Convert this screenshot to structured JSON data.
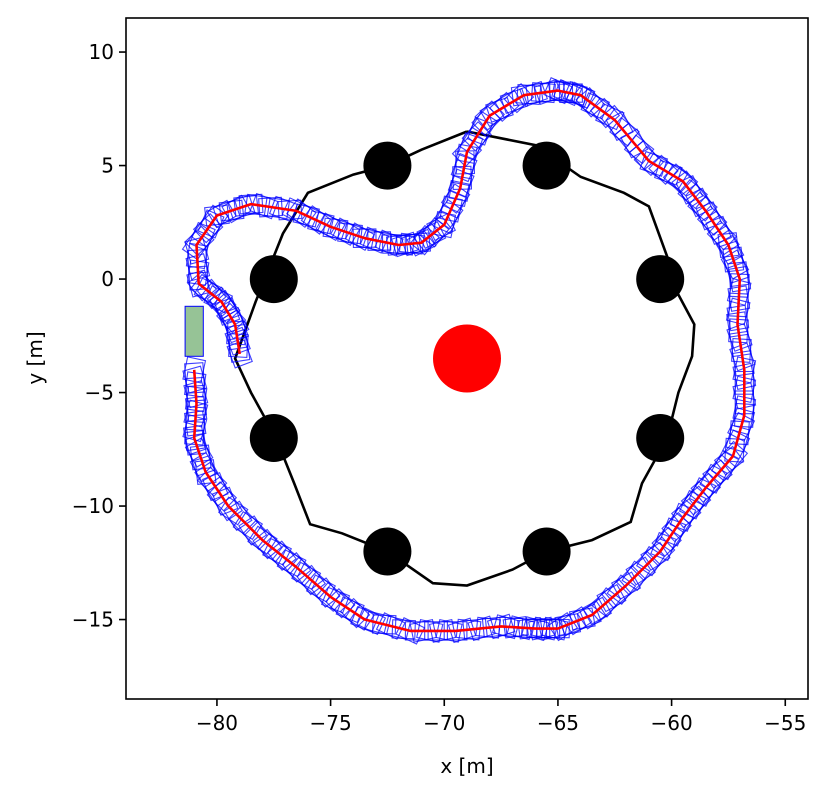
{
  "chart_data": {
    "type": "scatter",
    "xlabel": "x [m]",
    "ylabel": "y [m]",
    "xlim": [
      -84,
      -54
    ],
    "ylim": [
      -18.5,
      11.5
    ],
    "xticks": [
      -80,
      -75,
      -70,
      -65,
      -60,
      -55
    ],
    "yticks": [
      10,
      5,
      0,
      -5,
      -10,
      -15
    ],
    "xtick_labels": [
      "−80",
      "−75",
      "−70",
      "−65",
      "−60",
      "−55"
    ],
    "ytick_labels": [
      "10",
      "5",
      "0",
      "−5",
      "−10",
      "−15"
    ],
    "grid": false,
    "colors": {
      "polygon": "#000000",
      "obstacles": "#000000",
      "center": "#ff0000",
      "path": "#ff0000",
      "footprints": "#0000ff",
      "start": "#6aaa6a"
    },
    "center": {
      "x": -69,
      "y": -3.5
    },
    "obstacles": [
      {
        "x": -72.5,
        "y": 5
      },
      {
        "x": -65.5,
        "y": 5
      },
      {
        "x": -77.5,
        "y": 0
      },
      {
        "x": -60.5,
        "y": 0
      },
      {
        "x": -77.5,
        "y": -7
      },
      {
        "x": -60.5,
        "y": -7
      },
      {
        "x": -72.5,
        "y": -12
      },
      {
        "x": -65.5,
        "y": -12
      }
    ],
    "polygon": [
      [
        -69.0,
        6.5
      ],
      [
        -66.0,
        5.9
      ],
      [
        -64.0,
        4.5
      ],
      [
        -62.1,
        3.8
      ],
      [
        -61.0,
        3.2
      ],
      [
        -60.2,
        1.0
      ],
      [
        -59.8,
        -0.5
      ],
      [
        -59.0,
        -2.0
      ],
      [
        -59.1,
        -3.4
      ],
      [
        -59.7,
        -5.0
      ],
      [
        -60.2,
        -7.0
      ],
      [
        -61.3,
        -9.0
      ],
      [
        -61.8,
        -10.7
      ],
      [
        -63.5,
        -11.5
      ],
      [
        -65.5,
        -12.0
      ],
      [
        -67.0,
        -12.8
      ],
      [
        -69.0,
        -13.5
      ],
      [
        -70.5,
        -13.4
      ],
      [
        -72.5,
        -12.0
      ],
      [
        -74.5,
        -11.2
      ],
      [
        -75.9,
        -10.8
      ],
      [
        -76.6,
        -9.0
      ],
      [
        -77.4,
        -7.0
      ],
      [
        -78.5,
        -5.0
      ],
      [
        -79.2,
        -3.5
      ],
      [
        -78.3,
        -1.0
      ],
      [
        -77.1,
        2.0
      ],
      [
        -76.0,
        3.8
      ],
      [
        -74.0,
        4.6
      ],
      [
        -72.5,
        5.0
      ],
      [
        -71.0,
        5.7
      ],
      [
        -69.0,
        6.5
      ]
    ],
    "path": [
      [
        -79.0,
        -3.3
      ],
      [
        -79.2,
        -2.0
      ],
      [
        -79.8,
        -1.0
      ],
      [
        -80.8,
        -0.2
      ],
      [
        -80.9,
        1.5
      ],
      [
        -80.0,
        2.8
      ],
      [
        -78.5,
        3.3
      ],
      [
        -76.5,
        3.0
      ],
      [
        -75.0,
        2.3
      ],
      [
        -73.5,
        1.8
      ],
      [
        -72.0,
        1.5
      ],
      [
        -71.0,
        1.6
      ],
      [
        -70.0,
        2.4
      ],
      [
        -69.3,
        4.0
      ],
      [
        -69.0,
        5.6
      ],
      [
        -68.0,
        7.2
      ],
      [
        -66.5,
        8.1
      ],
      [
        -65.0,
        8.3
      ],
      [
        -64.0,
        8.1
      ],
      [
        -62.5,
        7.0
      ],
      [
        -61.0,
        5.2
      ],
      [
        -59.5,
        4.3
      ],
      [
        -58.5,
        3.0
      ],
      [
        -57.5,
        1.5
      ],
      [
        -57.0,
        0.0
      ],
      [
        -57.1,
        -2.0
      ],
      [
        -56.8,
        -4.0
      ],
      [
        -56.8,
        -6.0
      ],
      [
        -57.3,
        -7.8
      ],
      [
        -58.5,
        -9.2
      ],
      [
        -59.5,
        -10.5
      ],
      [
        -60.5,
        -12.0
      ],
      [
        -62.0,
        -13.5
      ],
      [
        -63.5,
        -14.8
      ],
      [
        -65.0,
        -15.4
      ],
      [
        -66.0,
        -15.4
      ],
      [
        -67.5,
        -15.3
      ],
      [
        -69.5,
        -15.5
      ],
      [
        -71.5,
        -15.5
      ],
      [
        -73.5,
        -15.0
      ],
      [
        -75.0,
        -14.0
      ],
      [
        -76.5,
        -12.7
      ],
      [
        -78.0,
        -11.5
      ],
      [
        -79.5,
        -10.0
      ],
      [
        -80.5,
        -8.5
      ],
      [
        -81.0,
        -7.0
      ],
      [
        -80.9,
        -5.5
      ],
      [
        -81.0,
        -4.0
      ]
    ],
    "start_pose": {
      "x": -81.0,
      "y": -2.3
    }
  }
}
